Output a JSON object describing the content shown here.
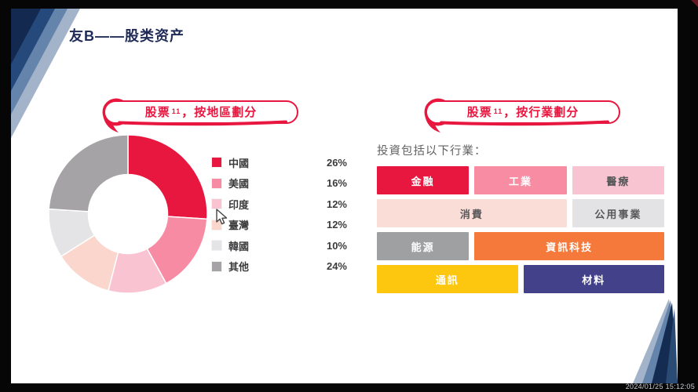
{
  "title": "友B——股类资产",
  "timestamp": "2024/01/25 15:12:05",
  "left_panel": {
    "banner": {
      "prefix": "股票",
      "footnote": "11",
      "suffix": "，按地區劃分"
    }
  },
  "right_panel": {
    "banner": {
      "prefix": "股票",
      "footnote": "11",
      "suffix": "，按行業劃分"
    },
    "intro": "投資包括以下行業：",
    "industries": [
      {
        "label": "金融",
        "bg": "#E8173F",
        "fg": "#FFFFFF",
        "span": 2
      },
      {
        "label": "工業",
        "bg": "#F78CA3",
        "fg": "#FFFFFF",
        "span": 2
      },
      {
        "label": "醫療",
        "bg": "#F9C4D2",
        "fg": "#58585A",
        "span": 2
      },
      {
        "label": "消費",
        "bg": "#FBDDD8",
        "fg": "#58585A",
        "span": 4
      },
      {
        "label": "公用事業",
        "bg": "#E3E3E5",
        "fg": "#58585A",
        "span": 2
      },
      {
        "label": "能源",
        "bg": "#9FA0A2",
        "fg": "#FFFFFF",
        "span": 2
      },
      {
        "label": "資訊科技",
        "bg": "#F4793B",
        "fg": "#FFFFFF",
        "span": 4
      },
      {
        "label": "通訊",
        "bg": "#FDC70F",
        "fg": "#FFFFFF",
        "span": 3
      },
      {
        "label": "材料",
        "bg": "#42418A",
        "fg": "#FFFFFF",
        "span": 3
      }
    ]
  },
  "chart_data": {
    "type": "pie",
    "variant": "donut",
    "title": "股票11，按地區劃分",
    "categories": [
      "中國",
      "美國",
      "印度",
      "臺灣",
      "韓國",
      "其他"
    ],
    "values": [
      26,
      16,
      12,
      12,
      10,
      24
    ],
    "unit": "%",
    "colors": [
      "#E8173F",
      "#F78BA4",
      "#F9C3D2",
      "#FAD6CC",
      "#E4E3E5",
      "#A5A3A5"
    ],
    "start_angle_deg": 0,
    "direction": "clockwise",
    "inner_radius_ratio": 0.5,
    "legend_position": "right"
  },
  "colors": {
    "accent_red": "#E8173F",
    "title_navy": "#1F2B56",
    "frame_black": "#060606"
  }
}
